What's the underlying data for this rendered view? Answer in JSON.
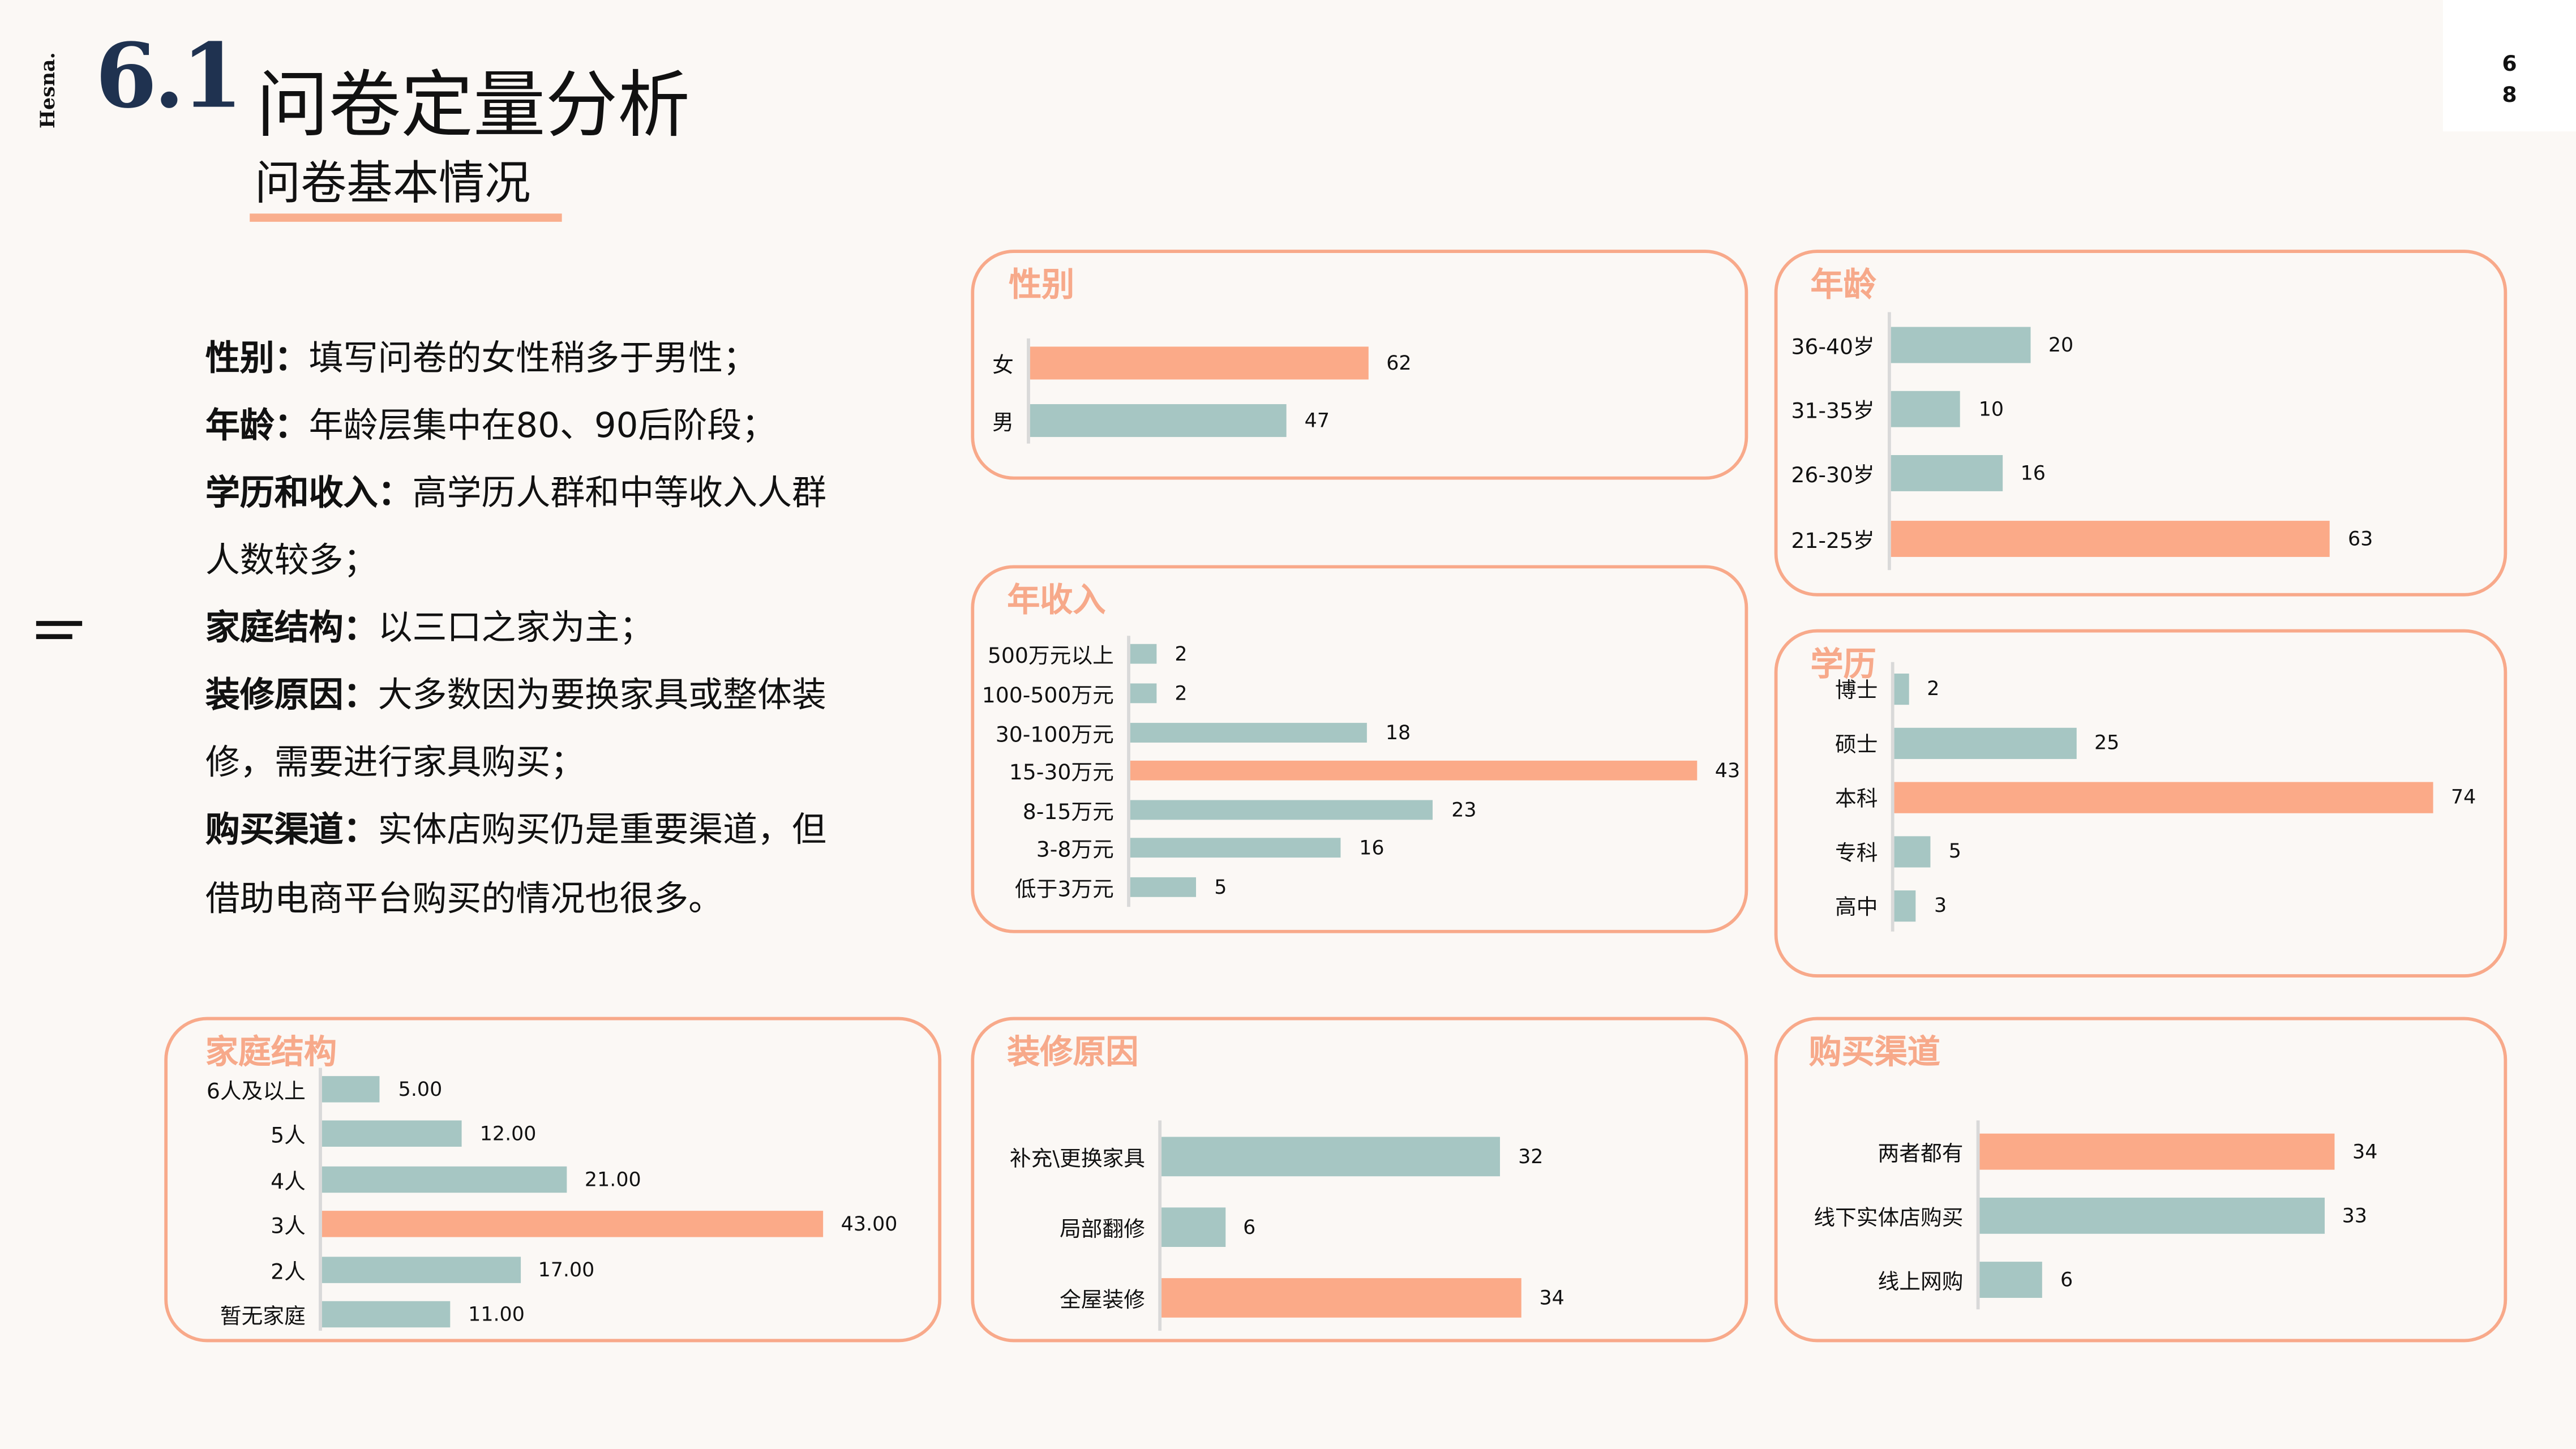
{
  "brand": "Hesna.",
  "header": {
    "section_number": "6.1",
    "title": "问卷定量分析",
    "subtitle": "问卷基本情况"
  },
  "page_number": [
    "6",
    "8"
  ],
  "colors": {
    "bar": "#A6C6C3",
    "highlight": "#FBAA88",
    "accent": "#F8A98A",
    "section_number": "#1F3250"
  },
  "summary": [
    {
      "label": "性别：",
      "text": "填写问卷的女性稍多于男性；"
    },
    {
      "label": "年龄：",
      "text": "年龄层集中在80、90后阶段；"
    },
    {
      "label": "学历和收入：",
      "text": "高学历人群和中等收入人群"
    },
    {
      "label": "",
      "text": "人数较多；"
    },
    {
      "label": "家庭结构：",
      "text": "以三口之家为主；"
    },
    {
      "label": "装修原因：",
      "text": "大多数因为要换家具或整体装"
    },
    {
      "label": "",
      "text": "修，需要进行家具购买；"
    },
    {
      "label": "购买渠道：",
      "text": "实体店购买仍是重要渠道，但"
    },
    {
      "label": "",
      "text": "借助电商平台购买的情况也很多。"
    }
  ],
  "chart_data": [
    {
      "id": "gender",
      "type": "bar",
      "orientation": "horizontal",
      "title": "性别",
      "categories": [
        "女",
        "男"
      ],
      "values": [
        62,
        47
      ],
      "highlight_index": 0,
      "decimals": 0
    },
    {
      "id": "age",
      "type": "bar",
      "orientation": "horizontal",
      "title": "年龄",
      "categories": [
        "36-40岁",
        "31-35岁",
        "26-30岁",
        "21-25岁"
      ],
      "values": [
        20,
        10,
        16,
        63
      ],
      "highlight_index": 3,
      "decimals": 0
    },
    {
      "id": "income",
      "type": "bar",
      "orientation": "horizontal",
      "title": "年收入",
      "categories": [
        "500万元以上",
        "100-500万元",
        "30-100万元",
        "15-30万元",
        "8-15万元",
        "3-8万元",
        "低于3万元"
      ],
      "values": [
        2,
        2,
        18,
        43,
        23,
        16,
        5
      ],
      "highlight_index": 3,
      "decimals": 0
    },
    {
      "id": "education",
      "type": "bar",
      "orientation": "horizontal",
      "title": "学历",
      "categories": [
        "博士",
        "硕士",
        "本科",
        "专科",
        "高中"
      ],
      "values": [
        2,
        25,
        74,
        5,
        3
      ],
      "highlight_index": 2,
      "decimals": 0
    },
    {
      "id": "family",
      "type": "bar",
      "orientation": "horizontal",
      "title": "家庭结构",
      "categories": [
        "6人及以上",
        "5人",
        "4人",
        "3人",
        "2人",
        "暂无家庭"
      ],
      "values": [
        5,
        12,
        21,
        43,
        17,
        11
      ],
      "highlight_index": 3,
      "decimals": 2
    },
    {
      "id": "renovation",
      "type": "bar",
      "orientation": "horizontal",
      "title": "装修原因",
      "categories": [
        "补充\\更换家具",
        "局部翻修",
        "全屋装修"
      ],
      "values": [
        32,
        6,
        34
      ],
      "highlight_index": 2,
      "decimals": 0
    },
    {
      "id": "channel",
      "type": "bar",
      "orientation": "horizontal",
      "title": "购买渠道",
      "categories": [
        "两者都有",
        "线下实体店购买",
        "线上网购"
      ],
      "values": [
        34,
        33,
        6
      ],
      "highlight_index": 0,
      "decimals": 0
    }
  ]
}
